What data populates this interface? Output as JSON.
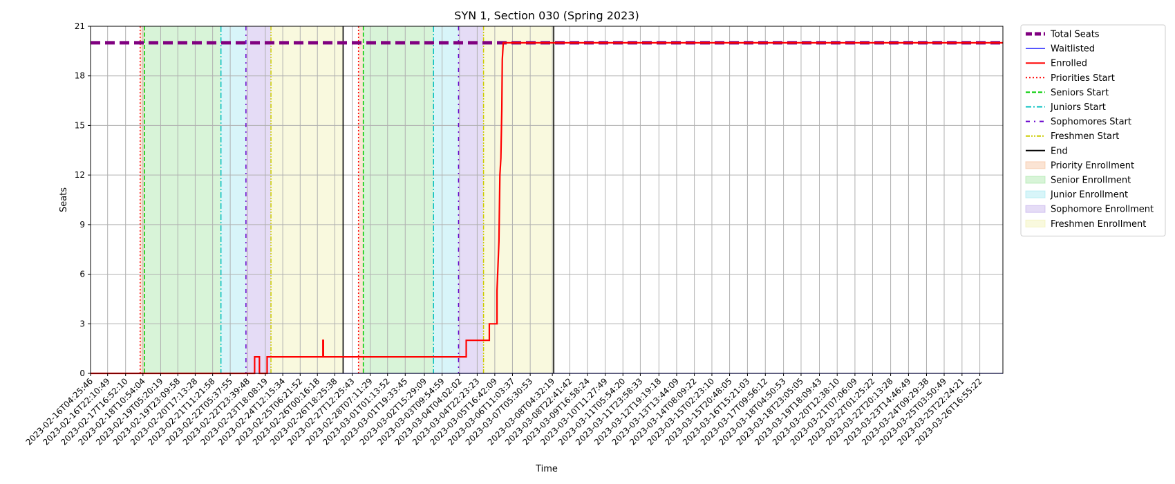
{
  "chart_data": {
    "type": "line",
    "title": "SYN 1, Section 030 (Spring 2023)",
    "xlabel": "Time",
    "ylabel": "Seats",
    "ylim": [
      0,
      21
    ],
    "yticks": [
      0,
      3,
      6,
      9,
      12,
      15,
      18,
      21
    ],
    "xlim": [
      "2023-02-16T04:25:46",
      "2023-03-27T16:55:22"
    ],
    "grid": true,
    "legend_position": "outside-right",
    "x_tick_labels": [
      "2023-02-16T04:25:46",
      "2023-02-16T22:10:49",
      "2023-02-17T16:52:10",
      "2023-02-18T10:54:04",
      "2023-02-19T05:20:19",
      "2023-02-19T23:09:58",
      "2023-02-20T17:13:28",
      "2023-02-21T11:21:58",
      "2023-02-22T05:37:55",
      "2023-02-22T23:39:48",
      "2023-02-23T18:08:19",
      "2023-02-24T12:15:34",
      "2023-02-25T06:21:52",
      "2023-02-26T00:16:18",
      "2023-02-26T18:25:38",
      "2023-02-27T12:25:43",
      "2023-02-28T07:11:29",
      "2023-03-01T01:13:52",
      "2023-03-01T19:33:45",
      "2023-03-02T15:29:09",
      "2023-03-03T09:54:59",
      "2023-03-04T04:02:02",
      "2023-03-04T22:23:23",
      "2023-03-05T16:42:09",
      "2023-03-06T11:03:37",
      "2023-03-07T05:30:53",
      "2023-03-08T04:32:19",
      "2023-03-08T22:41:42",
      "2023-03-09T16:58:24",
      "2023-03-10T11:27:49",
      "2023-03-11T05:54:20",
      "2023-03-11T23:58:33",
      "2023-03-12T19:19:18",
      "2023-03-13T13:44:09",
      "2023-03-14T08:09:22",
      "2023-03-15T02:23:10",
      "2023-03-15T20:48:05",
      "2023-03-16T15:21:03",
      "2023-03-17T09:56:12",
      "2023-03-18T04:50:53",
      "2023-03-18T23:05:05",
      "2023-03-19T18:09:43",
      "2023-03-20T12:38:10",
      "2023-03-21T07:06:09",
      "2023-03-22T01:25:22",
      "2023-03-22T20:13:28",
      "2023-03-23T14:46:49",
      "2023-03-24T09:29:38",
      "2023-03-25T03:50:49",
      "2023-03-25T22:24:21",
      "2023-03-26T16:55:22"
    ],
    "series": [
      {
        "name": "Total Seats",
        "color": "#800080",
        "style": "dashed-thick",
        "points": [
          [
            "2023-02-16T04:25:46",
            20
          ],
          [
            "2023-03-27T16:55:22",
            20
          ]
        ]
      },
      {
        "name": "Waitlisted",
        "color": "#0000ff",
        "style": "solid-thin",
        "points": [
          [
            "2023-02-16T04:25:46",
            0
          ],
          [
            "2023-03-27T16:55:22",
            0
          ]
        ]
      },
      {
        "name": "Enrolled",
        "color": "#ff0000",
        "style": "solid-step",
        "points": [
          [
            "2023-02-16T04:25:46",
            0
          ],
          [
            "2023-02-23T07:00:00",
            0
          ],
          [
            "2023-02-23T07:00:00",
            1
          ],
          [
            "2023-02-23T12:00:00",
            1
          ],
          [
            "2023-02-23T12:00:00",
            0
          ],
          [
            "2023-02-23T20:00:00",
            0
          ],
          [
            "2023-02-23T20:00:00",
            1
          ],
          [
            "2023-02-26T06:00:00",
            1
          ],
          [
            "2023-02-26T06:00:00",
            2
          ],
          [
            "2023-02-26T06:30:00",
            2
          ],
          [
            "2023-02-26T06:30:00",
            1
          ],
          [
            "2023-03-04T11:00:00",
            1
          ],
          [
            "2023-03-04T11:00:00",
            2
          ],
          [
            "2023-03-05T11:00:00",
            2
          ],
          [
            "2023-03-05T11:00:00",
            3
          ],
          [
            "2023-03-05T19:00:00",
            3
          ],
          [
            "2023-03-05T19:00:00",
            5
          ],
          [
            "2023-03-05T21:00:00",
            8
          ],
          [
            "2023-03-05T22:00:00",
            12
          ],
          [
            "2023-03-05T23:00:00",
            13
          ],
          [
            "2023-03-06T00:00:00",
            16
          ],
          [
            "2023-03-06T00:30:00",
            19
          ],
          [
            "2023-03-06T01:30:00",
            20
          ],
          [
            "2023-03-27T16:55:22",
            20
          ]
        ]
      }
    ],
    "markers": [
      {
        "name": "Priorities Start",
        "color": "#ff0000",
        "style": "dotted",
        "x": [
          "2023-02-18T08:00:00",
          "2023-02-27T19:00:00"
        ]
      },
      {
        "name": "Seniors Start",
        "color": "#00cc00",
        "style": "dashed",
        "x": [
          "2023-02-18T12:30:00",
          "2023-02-28T00:00:00"
        ]
      },
      {
        "name": "Juniors Start",
        "color": "#00bfbf",
        "style": "dashdot",
        "x": [
          "2023-02-21T20:00:00",
          "2023-03-03T01:00:00"
        ]
      },
      {
        "name": "Sophomores Start",
        "color": "#6600cc",
        "style": "loosely-dashdot",
        "x": [
          "2023-02-22T22:00:00",
          "2023-03-04T03:00:00"
        ]
      },
      {
        "name": "Freshmen Start",
        "color": "#cccc00",
        "style": "dashdot-dotted",
        "x": [
          "2023-02-24T00:00:00",
          "2023-03-05T05:00:00"
        ]
      },
      {
        "name": "End",
        "color": "#000000",
        "style": "solid",
        "x": [
          "2023-02-27T03:00:00",
          "2023-03-08T06:00:00"
        ]
      }
    ],
    "spans": [
      {
        "name": "Priority Enrollment",
        "color": "#f4b183",
        "ranges": [
          [
            "2023-02-18T08:00:00",
            "2023-02-18T12:30:00"
          ],
          [
            "2023-02-27T19:00:00",
            "2023-02-28T00:00:00"
          ]
        ]
      },
      {
        "name": "Senior Enrollment",
        "color": "#90e090",
        "ranges": [
          [
            "2023-02-18T12:30:00",
            "2023-02-21T20:00:00"
          ],
          [
            "2023-02-28T00:00:00",
            "2023-03-03T01:00:00"
          ]
        ]
      },
      {
        "name": "Junior Enrollment",
        "color": "#8fe3ed",
        "ranges": [
          [
            "2023-02-21T20:00:00",
            "2023-02-22T22:00:00"
          ],
          [
            "2023-03-03T01:00:00",
            "2023-03-04T03:00:00"
          ]
        ]
      },
      {
        "name": "Sophomore Enrollment",
        "color": "#b49be6",
        "ranges": [
          [
            "2023-02-22T22:00:00",
            "2023-02-24T00:00:00"
          ],
          [
            "2023-03-04T03:00:00",
            "2023-03-05T05:00:00"
          ]
        ]
      },
      {
        "name": "Freshmen Enrollment",
        "color": "#eeeea0",
        "ranges": [
          [
            "2023-02-24T00:00:00",
            "2023-02-27T03:00:00"
          ],
          [
            "2023-03-05T05:00:00",
            "2023-03-08T06:00:00"
          ]
        ]
      }
    ],
    "legend": [
      {
        "label": "Total Seats",
        "kind": "line",
        "color": "#800080",
        "style": "dashed-thick"
      },
      {
        "label": "Waitlisted",
        "kind": "line",
        "color": "#0000ff",
        "style": "solid-thin"
      },
      {
        "label": "Enrolled",
        "kind": "line",
        "color": "#ff0000",
        "style": "solid"
      },
      {
        "label": "Priorities Start",
        "kind": "line",
        "color": "#ff0000",
        "style": "dotted"
      },
      {
        "label": "Seniors Start",
        "kind": "line",
        "color": "#00cc00",
        "style": "dashed"
      },
      {
        "label": "Juniors Start",
        "kind": "line",
        "color": "#00bfbf",
        "style": "dashdot"
      },
      {
        "label": "Sophomores Start",
        "kind": "line",
        "color": "#6600cc",
        "style": "loosely-dashdot"
      },
      {
        "label": "Freshmen Start",
        "kind": "line",
        "color": "#cccc00",
        "style": "dashdot-dotted"
      },
      {
        "label": "End",
        "kind": "line",
        "color": "#000000",
        "style": "solid"
      },
      {
        "label": "Priority Enrollment",
        "kind": "patch",
        "color": "#f4b183"
      },
      {
        "label": "Senior Enrollment",
        "kind": "patch",
        "color": "#90e090"
      },
      {
        "label": "Junior Enrollment",
        "kind": "patch",
        "color": "#8fe3ed"
      },
      {
        "label": "Sophomore Enrollment",
        "kind": "patch",
        "color": "#b49be6"
      },
      {
        "label": "Freshmen Enrollment",
        "kind": "patch",
        "color": "#eeeea0"
      }
    ]
  }
}
